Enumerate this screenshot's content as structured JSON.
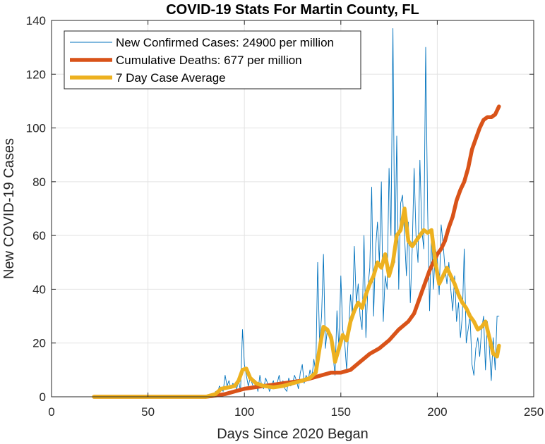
{
  "chart_data": {
    "type": "line",
    "title": "COVID-19 Stats For Martin County, FL",
    "xlabel": "Days Since 2020 Began",
    "ylabel": "New COVID-19 Cases",
    "xlim": [
      0,
      250
    ],
    "ylim": [
      0,
      140
    ],
    "xticks": [
      0,
      50,
      100,
      150,
      200,
      250
    ],
    "yticks": [
      0,
      20,
      40,
      60,
      80,
      100,
      120,
      140
    ],
    "grid": true,
    "legend_position": "top-left",
    "series": [
      {
        "name": "New Confirmed Cases: 24900 per million",
        "color": "#0072BD",
        "style": "thin",
        "x": [
          22,
          30,
          40,
          50,
          60,
          70,
          75,
          80,
          82,
          84,
          85,
          86,
          87,
          88,
          89,
          90,
          91,
          92,
          93,
          94,
          95,
          96,
          97,
          98,
          99,
          100,
          101,
          102,
          103,
          104,
          105,
          106,
          107,
          108,
          109,
          110,
          111,
          112,
          113,
          114,
          115,
          116,
          117,
          118,
          119,
          120,
          121,
          122,
          123,
          124,
          125,
          126,
          127,
          128,
          129,
          130,
          131,
          132,
          133,
          134,
          135,
          136,
          137,
          138,
          139,
          140,
          141,
          142,
          143,
          144,
          145,
          146,
          147,
          148,
          149,
          150,
          151,
          152,
          153,
          154,
          155,
          156,
          157,
          158,
          159,
          160,
          161,
          162,
          163,
          164,
          165,
          166,
          167,
          168,
          169,
          170,
          171,
          172,
          173,
          174,
          175,
          176,
          177,
          178,
          179,
          180,
          181,
          182,
          183,
          184,
          185,
          186,
          187,
          188,
          189,
          190,
          191,
          192,
          193,
          194,
          195,
          196,
          197,
          198,
          199,
          200,
          201,
          202,
          203,
          204,
          205,
          206,
          207,
          208,
          209,
          210,
          211,
          212,
          213,
          214,
          215,
          216,
          217,
          218,
          219,
          220,
          221,
          222,
          223,
          224,
          225,
          226,
          227,
          228,
          229,
          230,
          231,
          232
        ],
        "values": [
          0,
          0,
          0,
          0,
          0,
          0,
          0,
          0,
          1,
          0,
          2,
          1,
          4,
          3,
          2,
          8,
          4,
          6,
          3,
          5,
          4,
          3,
          6,
          2,
          25,
          12,
          8,
          4,
          7,
          5,
          3,
          6,
          2,
          8,
          4,
          3,
          7,
          5,
          2,
          4,
          6,
          3,
          5,
          8,
          4,
          6,
          3,
          2,
          7,
          4,
          5,
          8,
          6,
          3,
          9,
          12,
          5,
          8,
          6,
          10,
          7,
          14,
          9,
          50,
          20,
          30,
          53,
          18,
          25,
          22,
          20,
          15,
          8,
          32,
          18,
          45,
          25,
          20,
          10,
          24,
          38,
          30,
          56,
          35,
          42,
          30,
          25,
          60,
          22,
          40,
          48,
          78,
          30,
          55,
          65,
          50,
          80,
          28,
          45,
          40,
          85,
          60,
          137,
          50,
          97,
          40,
          72,
          75,
          60,
          45,
          65,
          35,
          55,
          85,
          60,
          50,
          88,
          62,
          55,
          130,
          70,
          32,
          60,
          40,
          55,
          52,
          38,
          64,
          57,
          48,
          42,
          50,
          40,
          32,
          45,
          28,
          35,
          22,
          30,
          55,
          20,
          25,
          30,
          12,
          8,
          18,
          22,
          15,
          25,
          30,
          10,
          28,
          18,
          6,
          22,
          10,
          30,
          30
        ],
        "legend_label": "New Confirmed Cases: 24900 per million"
      },
      {
        "name": "Cumulative Deaths: 677 per million",
        "color": "#D95319",
        "style": "thick",
        "x": [
          22,
          80,
          85,
          90,
          95,
          100,
          105,
          110,
          115,
          120,
          125,
          130,
          135,
          140,
          145,
          150,
          155,
          160,
          165,
          170,
          175,
          180,
          185,
          188,
          190,
          192,
          194,
          196,
          198,
          200,
          202,
          204,
          206,
          208,
          210,
          212,
          214,
          216,
          218,
          220,
          222,
          224,
          226,
          228,
          230,
          232
        ],
        "values": [
          0,
          0,
          0.5,
          1,
          2,
          3,
          3.5,
          4,
          4.5,
          5,
          5.5,
          6,
          7,
          8,
          9,
          9,
          10,
          13,
          16,
          18,
          21,
          25,
          28,
          31,
          35,
          39,
          43,
          47,
          50,
          53,
          55,
          58,
          63,
          67,
          73,
          77,
          80,
          85,
          92,
          96,
          100,
          103,
          104,
          104,
          105,
          108
        ],
        "legend_label": "Cumulative Deaths: 677 per million"
      },
      {
        "name": "7 Day Case Average",
        "color": "#EDB120",
        "style": "thick",
        "x": [
          22,
          40,
          60,
          80,
          85,
          88,
          92,
          95,
          97,
          99,
          101,
          103,
          106,
          110,
          115,
          120,
          125,
          130,
          134,
          137,
          139,
          141,
          143,
          145,
          147,
          149,
          151,
          153,
          155,
          157,
          159,
          161,
          163,
          165,
          167,
          169,
          171,
          173,
          175,
          177,
          179,
          181,
          183,
          185,
          187,
          189,
          191,
          193,
          195,
          197,
          199,
          201,
          203,
          205,
          207,
          209,
          211,
          213,
          215,
          217,
          219,
          221,
          223,
          225,
          227,
          229,
          231,
          232
        ],
        "values": [
          0,
          0,
          0,
          0,
          1,
          3,
          3.5,
          4,
          6,
          10,
          10.5,
          7,
          5,
          4,
          3.5,
          4,
          5,
          6,
          7,
          9,
          18,
          26,
          25,
          22,
          13,
          18,
          23,
          21,
          28,
          32,
          35,
          33,
          38,
          42,
          45,
          50,
          48,
          53,
          45,
          50,
          60,
          62,
          70,
          58,
          56,
          58,
          60,
          62,
          61,
          62,
          50,
          42,
          45,
          48,
          45,
          42,
          38,
          35,
          33,
          30,
          28,
          25,
          26,
          28,
          22,
          16,
          15,
          19
        ]
      }
    ]
  }
}
